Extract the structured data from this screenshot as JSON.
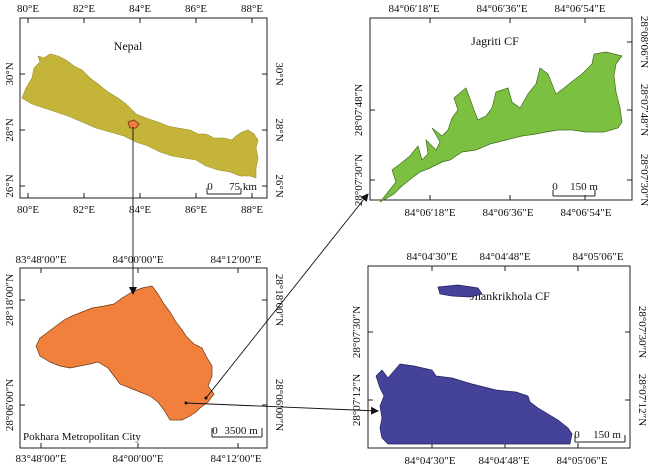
{
  "colors": {
    "nepal_fill": "#c4b53a",
    "pokhara_fill": "#f0803c",
    "jagriti_fill": "#7cc042",
    "jhankrikhola_fill": "#45429a",
    "connector": "#111111"
  },
  "panels": {
    "nepal": {
      "title": "Nepal",
      "top_ticks": [
        "80°E",
        "82°E",
        "84°E",
        "86°E",
        "88°E"
      ],
      "bottom_ticks": [
        "80°E",
        "82°E",
        "84°E",
        "86°E",
        "88°E"
      ],
      "left_ticks": [
        "30°N",
        "28°N",
        "26°N"
      ],
      "right_ticks": [
        "30°N",
        "28°N",
        "26°N"
      ],
      "scale_zero": "0",
      "scale_label": "75 km"
    },
    "pokhara": {
      "title": "Pokhara Metropolitan City",
      "top_ticks": [
        "83°48′00″E",
        "84°00′00″E",
        "84°12′00″E"
      ],
      "bottom_ticks": [
        "83°48′00″E",
        "84°00′00″E",
        "84°12′00″E"
      ],
      "left_ticks": [
        "28°18′00″N",
        "28°06′00″N"
      ],
      "right_ticks": [
        "28°18′00″N",
        "28°06′00″N"
      ],
      "scale_zero": "0",
      "scale_label": "3500 m"
    },
    "jagriti": {
      "title": "Jagriti CF",
      "top_ticks": [
        "84°06′18″E",
        "84°06′36″E",
        "84°06′54″E"
      ],
      "bottom_ticks": [
        "84°06′18″E",
        "84°06′36″E",
        "84°06′54″E"
      ],
      "left_ticks": [
        "28°07′48″N",
        "28°07′30″N"
      ],
      "right_ticks": [
        "28°08′06″N",
        "28°07′48″N",
        "28°07′30″N"
      ],
      "scale_zero": "0",
      "scale_label": "150 m"
    },
    "jhankrikhola": {
      "title": "Jhankrikhola CF",
      "top_ticks": [
        "84°04′30″E",
        "84°04′48″E",
        "84°05′06″E"
      ],
      "bottom_ticks": [
        "84°04′30″E",
        "84°04′48″E",
        "84°05′06″E"
      ],
      "left_ticks": [
        "28°07′30″N",
        "28°07′12″N"
      ],
      "right_ticks": [
        "28°07′30″N",
        "28°07′12″N"
      ],
      "scale_zero": "0",
      "scale_label": "150 m"
    }
  }
}
